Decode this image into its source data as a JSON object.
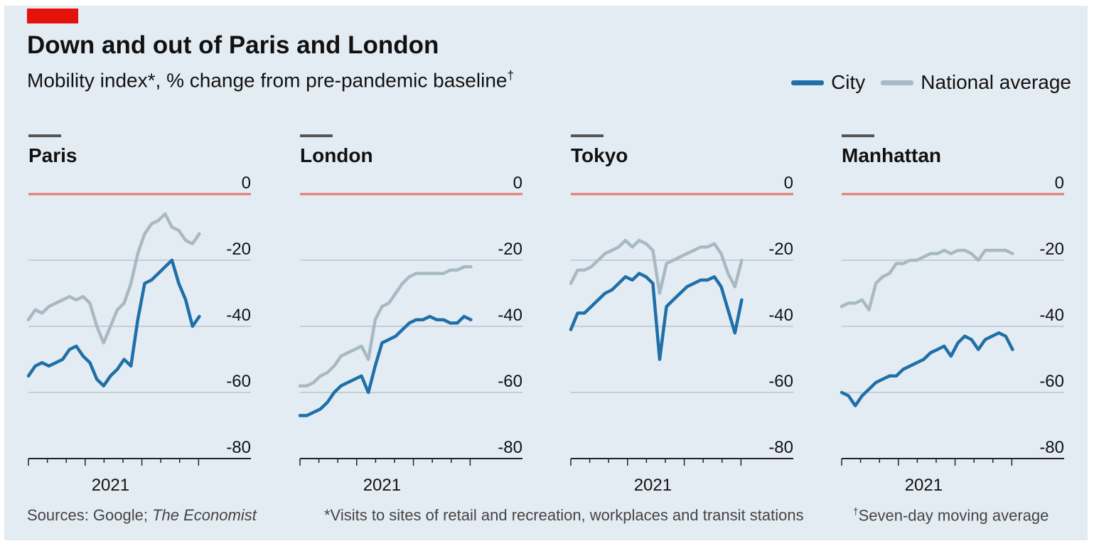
{
  "header": {
    "title": "Down and out of Paris and London",
    "subtitle": "Mobility index*, % change from pre-pandemic baseline",
    "subtitle_mark": "†"
  },
  "legend": [
    {
      "label": "City",
      "color": "#1f6fa8"
    },
    {
      "label": "National average",
      "color": "#a9b9c3"
    }
  ],
  "colors": {
    "city": "#1f6fa8",
    "national": "#a9b9c3",
    "zero_line": "#e07a72",
    "grid": "#b8c3cc",
    "tag": "#e3120b"
  },
  "footer": {
    "sources_prefix": "Sources: Google; ",
    "sources_italic": "The Economist",
    "note1": "*Visits to sites of retail and recreation, workplaces and transit stations",
    "note2_mark": "†",
    "note2": "Seven-day moving average"
  },
  "chart_data": [
    {
      "type": "line",
      "title": "Paris",
      "x": [
        0,
        3,
        6,
        9,
        12,
        15,
        18,
        21,
        24,
        27,
        30,
        33,
        36,
        39,
        42,
        45,
        48,
        51,
        54,
        57,
        60,
        63,
        66,
        69,
        72,
        75
      ],
      "x_range": [
        0,
        78
      ],
      "x_tick_label": "2021",
      "x_tick_label_at": 36,
      "ylim": [
        -80,
        0
      ],
      "y_ticks": [
        0,
        -20,
        -40,
        -60,
        -80
      ],
      "y_tick_labels": [
        "0",
        "-20",
        "-40",
        "-60",
        "-80"
      ],
      "series": [
        {
          "name": "City",
          "values": [
            -55,
            -52,
            -51,
            -52,
            -51,
            -50,
            -47,
            -46,
            -49,
            -51,
            -56,
            -58,
            -55,
            -53,
            -50,
            -52,
            -38,
            -27,
            -26,
            -24,
            -22,
            -20,
            -27,
            -32,
            -40,
            -37
          ]
        },
        {
          "name": "National average",
          "values": [
            -38,
            -35,
            -36,
            -34,
            -33,
            -32,
            -31,
            -32,
            -31,
            -33,
            -40,
            -45,
            -40,
            -35,
            -33,
            -27,
            -18,
            -12,
            -9,
            -8,
            -6,
            -10,
            -11,
            -14,
            -15,
            -12
          ]
        }
      ]
    },
    {
      "type": "line",
      "title": "London",
      "x": [
        0,
        3,
        6,
        9,
        12,
        15,
        18,
        21,
        24,
        27,
        30,
        33,
        36,
        39,
        42,
        45,
        48,
        51,
        54,
        57,
        60,
        63,
        66,
        69,
        72,
        75
      ],
      "x_range": [
        0,
        78
      ],
      "x_tick_label": "2021",
      "x_tick_label_at": 36,
      "ylim": [
        -80,
        0
      ],
      "y_ticks": [
        0,
        -20,
        -40,
        -60,
        -80
      ],
      "y_tick_labels": [
        "0",
        "-20",
        "-40",
        "-60",
        "-80"
      ],
      "series": [
        {
          "name": "City",
          "values": [
            -67,
            -67,
            -66,
            -65,
            -63,
            -60,
            -58,
            -57,
            -56,
            -55,
            -60,
            -52,
            -45,
            -44,
            -43,
            -41,
            -39,
            -38,
            -38,
            -37,
            -38,
            -38,
            -39,
            -39,
            -37,
            -38
          ]
        },
        {
          "name": "National average",
          "values": [
            -58,
            -58,
            -57,
            -55,
            -54,
            -52,
            -49,
            -48,
            -47,
            -46,
            -50,
            -38,
            -34,
            -33,
            -30,
            -27,
            -25,
            -24,
            -24,
            -24,
            -24,
            -24,
            -23,
            -23,
            -22,
            -22
          ]
        }
      ]
    },
    {
      "type": "line",
      "title": "Tokyo",
      "x": [
        0,
        3,
        6,
        9,
        12,
        15,
        18,
        21,
        24,
        27,
        30,
        33,
        36,
        39,
        42,
        45,
        48,
        51,
        54,
        57,
        60,
        63,
        66,
        69,
        72,
        75
      ],
      "x_range": [
        0,
        78
      ],
      "x_tick_label": "2021",
      "x_tick_label_at": 36,
      "ylim": [
        -80,
        0
      ],
      "y_ticks": [
        0,
        -20,
        -40,
        -60,
        -80
      ],
      "y_tick_labels": [
        "0",
        "-20",
        "-40",
        "-60",
        "-80"
      ],
      "series": [
        {
          "name": "City",
          "values": [
            -41,
            -36,
            -36,
            -34,
            -32,
            -30,
            -29,
            -27,
            -25,
            -26,
            -24,
            -25,
            -27,
            -50,
            -34,
            -32,
            -30,
            -28,
            -27,
            -26,
            -26,
            -25,
            -28,
            -35,
            -42,
            -32
          ]
        },
        {
          "name": "National average",
          "values": [
            -27,
            -23,
            -23,
            -22,
            -20,
            -18,
            -17,
            -16,
            -14,
            -16,
            -14,
            -15,
            -17,
            -30,
            -21,
            -20,
            -19,
            -18,
            -17,
            -16,
            -16,
            -15,
            -18,
            -24,
            -28,
            -20
          ]
        }
      ]
    },
    {
      "type": "line",
      "title": "Manhattan",
      "x": [
        0,
        3,
        6,
        9,
        12,
        15,
        18,
        21,
        24,
        27,
        30,
        33,
        36,
        39,
        42,
        45,
        48,
        51,
        54,
        57,
        60,
        63,
        66,
        69,
        72,
        75
      ],
      "x_range": [
        0,
        78
      ],
      "x_tick_label": "2021",
      "x_tick_label_at": 36,
      "ylim": [
        -80,
        0
      ],
      "y_ticks": [
        0,
        -20,
        -40,
        -60,
        -80
      ],
      "y_tick_labels": [
        "0",
        "-20",
        "-40",
        "-60",
        "-80"
      ],
      "series": [
        {
          "name": "City",
          "values": [
            -60,
            -61,
            -64,
            -61,
            -59,
            -57,
            -56,
            -55,
            -55,
            -53,
            -52,
            -51,
            -50,
            -48,
            -47,
            -46,
            -49,
            -45,
            -43,
            -44,
            -47,
            -44,
            -43,
            -42,
            -43,
            -47
          ]
        },
        {
          "name": "National average",
          "values": [
            -34,
            -33,
            -33,
            -32,
            -35,
            -27,
            -25,
            -24,
            -21,
            -21,
            -20,
            -20,
            -19,
            -18,
            -18,
            -17,
            -18,
            -17,
            -17,
            -18,
            -20,
            -17,
            -17,
            -17,
            -17,
            -18
          ]
        }
      ]
    }
  ]
}
